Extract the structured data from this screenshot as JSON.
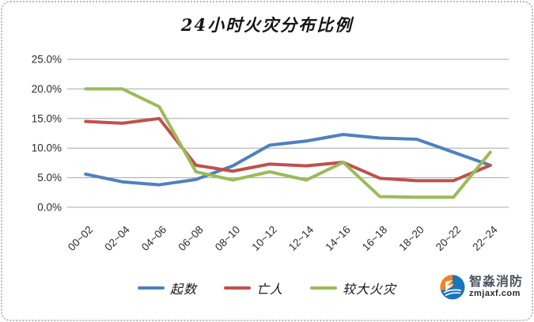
{
  "title": "24小时火灾分布比例",
  "chart_data": {
    "type": "line",
    "title": "24小时火灾分布比例",
    "xlabel": "",
    "ylabel": "",
    "categories": [
      "00~02",
      "02~04",
      "04~06",
      "06~08",
      "08~10",
      "10~12",
      "12~14",
      "14~16",
      "16~18",
      "18~20",
      "20~22",
      "22~24"
    ],
    "series": [
      {
        "name": "起数",
        "color": "#4F81BD",
        "values": [
          5.6,
          4.3,
          3.8,
          4.7,
          7.0,
          10.5,
          11.2,
          12.3,
          11.7,
          11.5,
          9.3,
          7.1
        ]
      },
      {
        "name": "亡人",
        "color": "#C0504D",
        "values": [
          14.5,
          14.2,
          15.0,
          7.1,
          6.1,
          7.3,
          7.0,
          7.6,
          4.9,
          4.5,
          4.5,
          7.1
        ]
      },
      {
        "name": "较大火灾",
        "color": "#9BBB59",
        "values": [
          20.0,
          20.0,
          17.0,
          6.0,
          4.6,
          6.0,
          4.6,
          7.6,
          1.8,
          1.7,
          1.7,
          9.3
        ]
      }
    ],
    "y_ticks": [
      25,
      20,
      15,
      10,
      5,
      0
    ],
    "y_tick_labels": [
      "25.0%",
      "20.0%",
      "15.0%",
      "10.0%",
      "5.0%",
      "0.0%"
    ],
    "ylim": [
      0,
      25
    ],
    "grid": true,
    "legend_position": "bottom",
    "x_label_rotation_deg": -45
  },
  "colors": {
    "gridline": "#a8a8a8",
    "axis_text": "#2b2b2b"
  },
  "watermark": {
    "name": "智淼消防",
    "domain": "zmjaxf.com",
    "icon_blue": "#1B75BB",
    "icon_orange": "#F58220"
  }
}
